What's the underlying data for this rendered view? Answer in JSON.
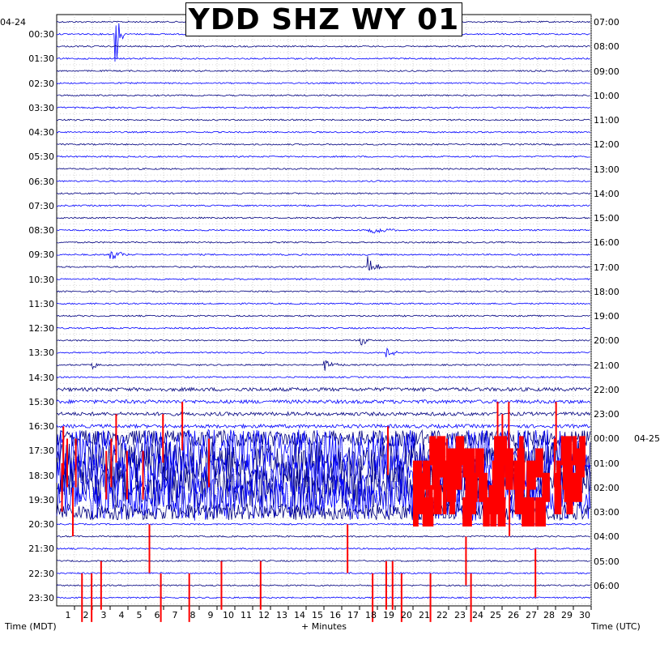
{
  "title": "YDD SHZ WY 01",
  "date_labels": {
    "left_start": "04-24",
    "right_day2": "04-25"
  },
  "footer": {
    "left": "Time (MDT)",
    "center": "+ Minutes",
    "right": "Time (UTC)"
  },
  "colors": {
    "trace_a": "#000080",
    "trace_b": "#0000ff",
    "clipped": "#ff0000",
    "grid": "#b4b4b4"
  },
  "chart_data": {
    "type": "line",
    "title": "YDD SHZ WY 01",
    "xlabel": "+ Minutes",
    "ylabel_left": "Time (MDT)",
    "ylabel_right": "Time (UTC)",
    "xlim": [
      0,
      30
    ],
    "x_ticks": [
      1,
      2,
      3,
      4,
      5,
      6,
      7,
      8,
      9,
      10,
      11,
      12,
      13,
      14,
      15,
      16,
      17,
      18,
      19,
      20,
      21,
      22,
      23,
      24,
      25,
      26,
      27,
      28,
      29,
      30
    ],
    "rows_per_hour": 2,
    "row_count": 48,
    "left_time_labels": [
      "00:30",
      "01:30",
      "02:30",
      "03:30",
      "04:30",
      "05:30",
      "06:30",
      "07:30",
      "08:30",
      "09:30",
      "10:30",
      "11:30",
      "12:30",
      "13:30",
      "14:30",
      "15:30",
      "16:30",
      "17:30",
      "18:30",
      "19:30",
      "20:30",
      "21:30",
      "22:30",
      "23:30"
    ],
    "right_time_labels": [
      "07:00",
      "08:00",
      "09:00",
      "10:00",
      "11:00",
      "12:00",
      "13:00",
      "14:00",
      "15:00",
      "16:00",
      "17:00",
      "18:00",
      "19:00",
      "20:00",
      "21:00",
      "22:00",
      "23:00",
      "00:00",
      "01:00",
      "02:00",
      "03:00",
      "04:00",
      "05:00",
      "06:00"
    ],
    "grid": true,
    "events": [
      {
        "row": 1,
        "minute": 3.3,
        "amplitude": 60,
        "duration_min": 0.5
      },
      {
        "row": 19,
        "minute": 3.0,
        "amplitude": 8,
        "duration_min": 1.5
      },
      {
        "row": 20,
        "minute": 17.5,
        "amplitude": 14,
        "duration_min": 1.0
      },
      {
        "row": 17,
        "minute": 17.5,
        "amplitude": 8,
        "duration_min": 2.0
      },
      {
        "row": 26,
        "minute": 17.0,
        "amplitude": 8,
        "duration_min": 1.0
      },
      {
        "row": 27,
        "minute": 18.5,
        "amplitude": 10,
        "duration_min": 1.0
      },
      {
        "row": 28,
        "minute": 15.0,
        "amplitude": 8,
        "duration_min": 1.5
      },
      {
        "row": 28,
        "minute": 2.0,
        "amplitude": 5,
        "duration_min": 1.0
      }
    ],
    "noisy_rows": [
      34,
      35,
      36,
      37,
      38,
      39,
      40
    ],
    "clipped_regions": [
      {
        "row_start": 35,
        "row_end": 40,
        "minute_start": 20.0,
        "minute_end": 29.5
      }
    ]
  }
}
